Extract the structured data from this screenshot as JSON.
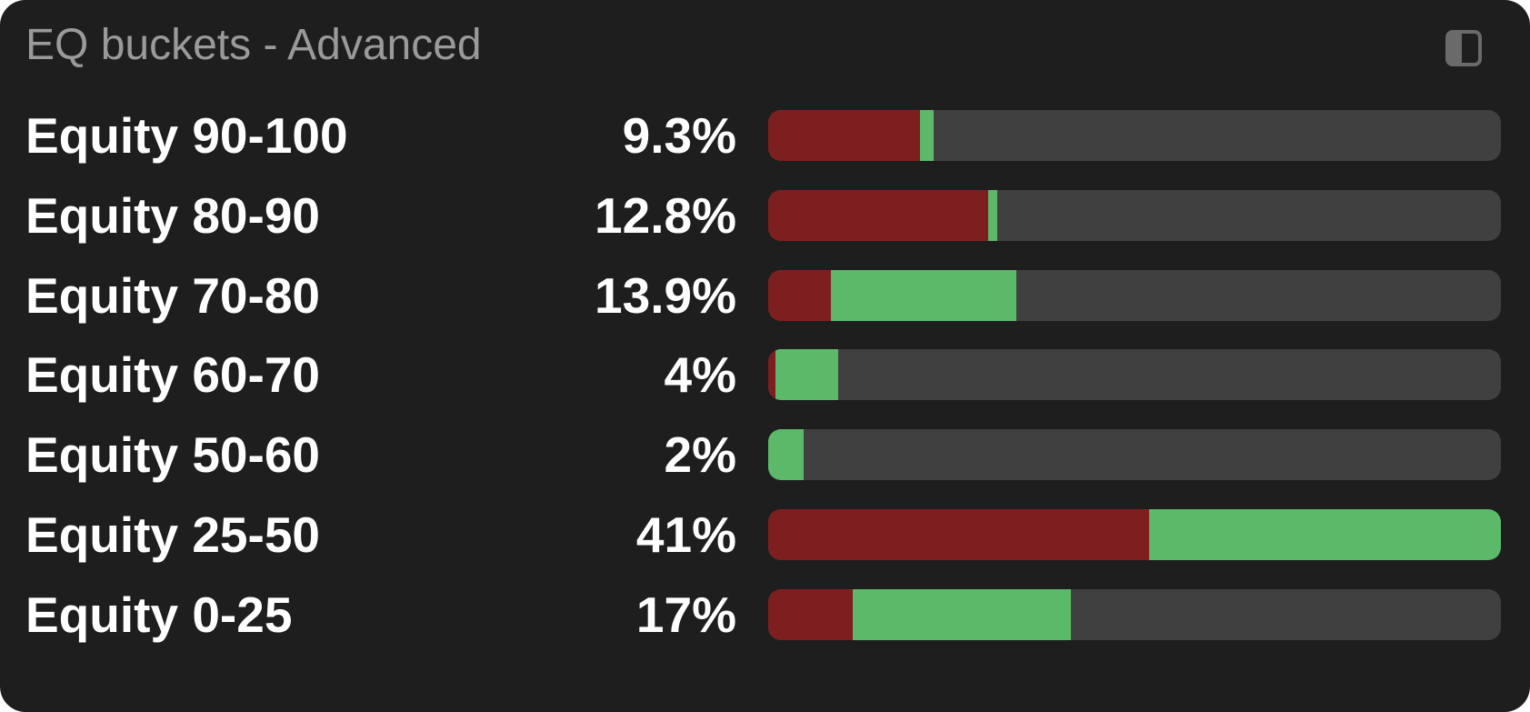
{
  "widget": {
    "title": "EQ buckets - Advanced",
    "toggle_icon": "sidebar-toggle-icon"
  },
  "colors": {
    "background": "#1e1e1e",
    "track": "#404040",
    "red": "#7e1f1f",
    "green": "#5cb96a",
    "title": "#9a9a9a",
    "text": "#ffffff"
  },
  "buckets": [
    {
      "label": "Equity 90-100",
      "value": "9.3%",
      "red_fraction": 0.207,
      "green_fraction": 0.019
    },
    {
      "label": "Equity 80-90",
      "value": "12.8%",
      "red_fraction": 0.3,
      "green_fraction": 0.012
    },
    {
      "label": "Equity 70-80",
      "value": "13.9%",
      "red_fraction": 0.085,
      "green_fraction": 0.253
    },
    {
      "label": "Equity 60-70",
      "value": "4%",
      "red_fraction": 0.01,
      "green_fraction": 0.086
    },
    {
      "label": "Equity 50-60",
      "value": "2%",
      "red_fraction": 0.0,
      "green_fraction": 0.048
    },
    {
      "label": "Equity 25-50",
      "value": "41%",
      "red_fraction": 0.52,
      "green_fraction": 0.48
    },
    {
      "label": "Equity 0-25",
      "value": "17%",
      "red_fraction": 0.115,
      "green_fraction": 0.298
    }
  ]
}
